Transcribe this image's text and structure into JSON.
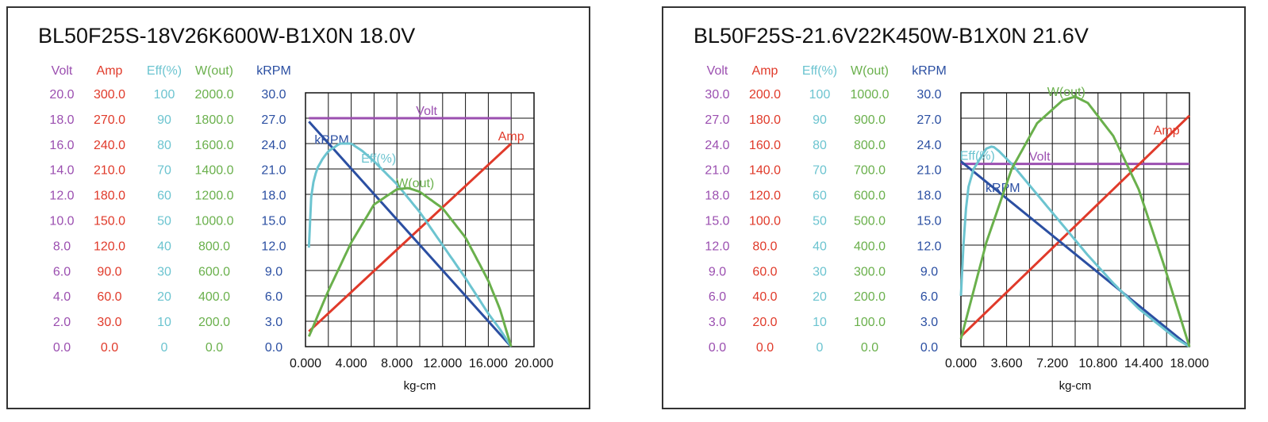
{
  "colors": {
    "volt": "#9b4fb0",
    "amp": "#e03a2a",
    "eff": "#6cc4d0",
    "wout": "#6ab04c",
    "krpm": "#2b4fa2",
    "grid": "#111111"
  },
  "chart_data": [
    {
      "type": "line",
      "title": "BL50F25S-18V26K600W-B1X0N   18.0V",
      "xlabel": "kg-cm",
      "x_ticks": [
        "0.000",
        "4.000",
        "8.000",
        "12.000",
        "16.000",
        "20.000"
      ],
      "xlim": [
        0,
        20
      ],
      "axes": [
        {
          "key": "volt",
          "header": "Volt",
          "ticks": [
            "20.0",
            "18.0",
            "16.0",
            "14.0",
            "12.0",
            "10.0",
            "8.0",
            "6.0",
            "4.0",
            "2.0",
            "0.0"
          ],
          "range": [
            0,
            20
          ]
        },
        {
          "key": "amp",
          "header": "Amp",
          "ticks": [
            "300.0",
            "270.0",
            "240.0",
            "210.0",
            "180.0",
            "150.0",
            "120.0",
            "90.0",
            "60.0",
            "30.0",
            "0.0"
          ],
          "range": [
            0,
            300
          ]
        },
        {
          "key": "eff",
          "header": "Eff(%)",
          "ticks": [
            "100",
            "90",
            "80",
            "70",
            "60",
            "50",
            "40",
            "30",
            "20",
            "10",
            "0"
          ],
          "range": [
            0,
            100
          ]
        },
        {
          "key": "wout",
          "header": "W(out)",
          "ticks": [
            "2000.0",
            "1800.0",
            "1600.0",
            "1400.0",
            "1200.0",
            "1000.0",
            "800.0",
            "600.0",
            "400.0",
            "200.0",
            "0.0"
          ],
          "range": [
            0,
            2000
          ]
        },
        {
          "key": "krpm",
          "header": "kRPM",
          "ticks": [
            "30.0",
            "27.0",
            "24.0",
            "21.0",
            "18.0",
            "15.0",
            "12.0",
            "9.0",
            "6.0",
            "3.0",
            "0.0"
          ],
          "range": [
            0,
            30
          ]
        }
      ],
      "series": [
        {
          "name": "Volt",
          "axis": "volt",
          "x": [
            0.3,
            18.0
          ],
          "y": [
            18.0,
            18.0
          ],
          "label_x": 10.6
        },
        {
          "name": "Amp",
          "axis": "amp",
          "x": [
            0.3,
            18.0
          ],
          "y": [
            18,
            240
          ],
          "label_x": 18.0
        },
        {
          "name": "kRPM",
          "axis": "krpm",
          "x": [
            0.3,
            18.0
          ],
          "y": [
            26.6,
            0
          ],
          "label_x": 2.3
        },
        {
          "name": "Eff(%)",
          "axis": "eff",
          "x": [
            0.3,
            0.4,
            0.7,
            1.0,
            1.5,
            2.0,
            3.0,
            4.0,
            5.0,
            6.0,
            8.0,
            10.0,
            12.0,
            14.0,
            16.0,
            17.0,
            18.0
          ],
          "y": [
            39,
            56,
            65,
            70,
            74,
            77,
            80,
            80,
            77,
            73,
            64,
            53,
            40,
            27,
            13,
            7,
            0
          ],
          "label_x": 6.4
        },
        {
          "name": "W(out)",
          "axis": "wout",
          "x": [
            0.3,
            2,
            4,
            6,
            8,
            9,
            10,
            12,
            14,
            16,
            17,
            18
          ],
          "y": [
            80,
            440,
            820,
            1120,
            1240,
            1250,
            1220,
            1090,
            860,
            520,
            300,
            0
          ],
          "label_x": 9.6
        }
      ]
    },
    {
      "type": "line",
      "title": "BL50F25S-21.6V22K450W-B1X0N   21.6V",
      "xlabel": "kg-cm",
      "x_ticks": [
        "0.000",
        "3.600",
        "7.200",
        "10.800",
        "14.400",
        "18.000"
      ],
      "xlim": [
        0,
        18
      ],
      "axes": [
        {
          "key": "volt",
          "header": "Volt",
          "ticks": [
            "30.0",
            "27.0",
            "24.0",
            "21.0",
            "18.0",
            "15.0",
            "12.0",
            "9.0",
            "6.0",
            "3.0",
            "0.0"
          ],
          "range": [
            0,
            30
          ]
        },
        {
          "key": "amp",
          "header": "Amp",
          "ticks": [
            "200.0",
            "180.0",
            "160.0",
            "140.0",
            "120.0",
            "100.0",
            "80.0",
            "60.0",
            "40.0",
            "20.0",
            "0.0"
          ],
          "range": [
            0,
            200
          ]
        },
        {
          "key": "eff",
          "header": "Eff(%)",
          "ticks": [
            "100",
            "90",
            "80",
            "70",
            "60",
            "50",
            "40",
            "30",
            "20",
            "10",
            "0"
          ],
          "range": [
            0,
            100
          ]
        },
        {
          "key": "wout",
          "header": "W(out)",
          "ticks": [
            "1000.0",
            "900.0",
            "800.0",
            "700.0",
            "600.0",
            "500.0",
            "400.0",
            "300.0",
            "200.0",
            "100.0",
            "0.0"
          ],
          "range": [
            0,
            1000
          ]
        },
        {
          "key": "krpm",
          "header": "kRPM",
          "ticks": [
            "30.0",
            "27.0",
            "24.0",
            "21.0",
            "18.0",
            "15.0",
            "12.0",
            "9.0",
            "6.0",
            "3.0",
            "0.0"
          ],
          "range": [
            0,
            30
          ]
        }
      ],
      "series": [
        {
          "name": "Volt",
          "axis": "volt",
          "x": [
            0,
            18.0
          ],
          "y": [
            21.6,
            21.6
          ],
          "label_x": 6.2
        },
        {
          "name": "Amp",
          "axis": "amp",
          "x": [
            0,
            18.0
          ],
          "y": [
            8,
            182
          ],
          "label_x": 16.2
        },
        {
          "name": "kRPM",
          "axis": "krpm",
          "x": [
            0,
            18.0
          ],
          "y": [
            21.9,
            0
          ],
          "label_x": 3.3
        },
        {
          "name": "Eff(%)",
          "axis": "eff",
          "x": [
            0,
            0.3,
            0.6,
            1.0,
            1.5,
            2.0,
            2.5,
            3.0,
            4.0,
            6.0,
            8.0,
            10.0,
            12.0,
            14.0,
            16.0,
            17.0,
            18.0
          ],
          "y": [
            20,
            50,
            63,
            70,
            74,
            78,
            79,
            77,
            72,
            60,
            48,
            36,
            25,
            15,
            7,
            3,
            0
          ],
          "label_x": 1.3
        },
        {
          "name": "W(out)",
          "axis": "wout",
          "x": [
            0,
            1,
            2,
            4,
            6,
            8,
            9,
            10,
            12,
            14,
            16,
            17,
            18
          ],
          "y": [
            30,
            220,
            410,
            700,
            880,
            970,
            985,
            960,
            830,
            620,
            320,
            160,
            0
          ],
          "label_x": 8.3
        }
      ]
    }
  ]
}
